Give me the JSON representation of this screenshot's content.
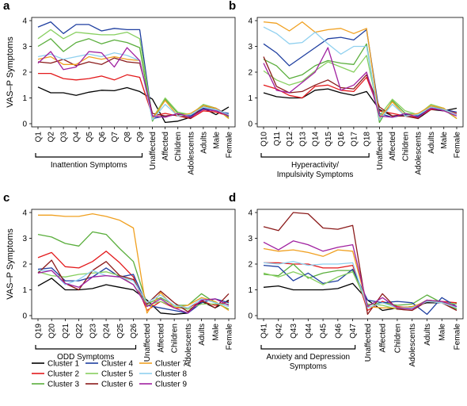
{
  "figure": {
    "legend": [
      {
        "name": "Cluster 1",
        "color": "#000000"
      },
      {
        "name": "Cluster 2",
        "color": "#e31a1c"
      },
      {
        "name": "Cluster 3",
        "color": "#5aae3c"
      },
      {
        "name": "Cluster 4",
        "color": "#1f3fa0"
      },
      {
        "name": "Cluster 5",
        "color": "#87cf5f"
      },
      {
        "name": "Cluster 6",
        "color": "#8b1a1a"
      },
      {
        "name": "Cluster 7",
        "color": "#f0a020"
      },
      {
        "name": "Cluster 8",
        "color": "#8fd0ef"
      },
      {
        "name": "Cluster 9",
        "color": "#a020a0"
      }
    ]
  },
  "chart_data": [
    {
      "type": "line",
      "panel": "a",
      "ylabel": "VAS–P Symptoms",
      "ylim": [
        0,
        4
      ],
      "yticks": [
        0,
        1,
        2,
        3,
        4
      ],
      "categories": [
        "Q1",
        "Q2",
        "Q3",
        "Q4",
        "Q5",
        "Q6",
        "Q7",
        "Q8",
        "Q9",
        "Unaffected",
        "Affected",
        "Children",
        "Adolescents",
        "Adults",
        "Male",
        "Female"
      ],
      "group_label": [
        "Inattention Symptoms"
      ],
      "series": [
        {
          "name": "Cluster 1",
          "values": [
            1.42,
            1.2,
            1.2,
            1.1,
            1.22,
            1.3,
            1.28,
            1.4,
            1.25,
            0.95,
            0.05,
            0.1,
            0.25,
            0.6,
            0.35,
            0.65
          ]
        },
        {
          "name": "Cluster 2",
          "values": [
            1.95,
            1.95,
            1.75,
            1.7,
            1.75,
            1.85,
            1.7,
            1.9,
            1.8,
            0.3,
            0.4,
            0.3,
            0.2,
            0.5,
            0.45,
            0.3
          ]
        },
        {
          "name": "Cluster 3",
          "values": [
            3.0,
            3.3,
            2.8,
            3.15,
            3.3,
            3.1,
            3.25,
            3.15,
            2.95,
            0.1,
            0.95,
            0.4,
            0.35,
            0.7,
            0.55,
            0.25
          ]
        },
        {
          "name": "Cluster 4",
          "values": [
            3.75,
            3.95,
            3.5,
            3.85,
            3.85,
            3.6,
            3.7,
            3.65,
            3.65,
            0.2,
            0.3,
            0.35,
            0.3,
            0.6,
            0.5,
            0.4
          ]
        },
        {
          "name": "Cluster 5",
          "values": [
            3.3,
            3.65,
            3.3,
            3.55,
            3.5,
            3.45,
            3.45,
            3.55,
            3.3,
            0.2,
            1.0,
            0.45,
            0.35,
            0.75,
            0.6,
            0.2
          ]
        },
        {
          "name": "Cluster 6",
          "values": [
            2.4,
            2.35,
            2.5,
            2.25,
            2.4,
            2.3,
            2.55,
            2.4,
            2.35,
            0.4,
            0.3,
            0.35,
            0.2,
            0.7,
            0.6,
            0.3
          ]
        },
        {
          "name": "Cluster 7",
          "values": [
            2.5,
            2.6,
            2.3,
            2.3,
            2.6,
            2.5,
            2.6,
            2.5,
            2.45,
            0.2,
            0.9,
            0.3,
            0.4,
            0.7,
            0.6,
            0.2
          ]
        },
        {
          "name": "Cluster 8",
          "values": [
            2.6,
            2.7,
            2.5,
            2.6,
            2.7,
            2.6,
            2.75,
            2.65,
            2.45,
            0.15,
            0.75,
            0.3,
            0.35,
            0.65,
            0.55,
            0.35
          ]
        },
        {
          "name": "Cluster 9",
          "values": [
            2.35,
            2.8,
            2.1,
            2.2,
            2.8,
            2.75,
            2.2,
            2.95,
            2.45,
            0.3,
            0.25,
            0.4,
            0.25,
            0.55,
            0.5,
            0.3
          ]
        }
      ]
    },
    {
      "type": "line",
      "panel": "b",
      "ylabel": "",
      "ylim": [
        0,
        4
      ],
      "yticks": [
        0,
        1,
        2,
        3,
        4
      ],
      "categories": [
        "Q10",
        "Q11",
        "Q12",
        "Q13",
        "Q14",
        "Q15",
        "Q16",
        "Q17",
        "Q18",
        "Unaffected",
        "Affected",
        "Children",
        "Adolescents",
        "Adults",
        "Male",
        "Female"
      ],
      "group_label": [
        "Hyperactivity/",
        "Impulsivity Symptoms"
      ],
      "series": [
        {
          "name": "Cluster 1",
          "values": [
            1.2,
            1.05,
            1.0,
            1.0,
            1.3,
            1.35,
            1.2,
            1.1,
            1.25,
            0.55,
            0.3,
            0.35,
            0.2,
            0.55,
            0.5,
            0.6
          ]
        },
        {
          "name": "Cluster 2",
          "values": [
            1.5,
            1.35,
            1.1,
            1.0,
            1.45,
            1.5,
            1.3,
            1.25,
            1.8,
            0.5,
            0.4,
            0.3,
            0.25,
            0.55,
            0.55,
            0.4
          ]
        },
        {
          "name": "Cluster 3",
          "values": [
            2.5,
            2.25,
            1.75,
            1.9,
            2.25,
            2.45,
            2.35,
            2.3,
            3.1,
            0.05,
            0.9,
            0.4,
            0.35,
            0.7,
            0.55,
            0.2
          ]
        },
        {
          "name": "Cluster 4",
          "values": [
            3.1,
            2.75,
            2.25,
            2.6,
            2.95,
            3.3,
            3.35,
            3.25,
            3.65,
            0.4,
            0.25,
            0.35,
            0.3,
            0.6,
            0.55,
            0.45
          ]
        },
        {
          "name": "Cluster 5",
          "values": [
            2.05,
            1.7,
            1.5,
            1.65,
            2.05,
            2.4,
            2.2,
            2.0,
            2.65,
            0.3,
            0.95,
            0.5,
            0.35,
            0.75,
            0.6,
            0.2
          ]
        },
        {
          "name": "Cluster 6",
          "values": [
            2.6,
            1.45,
            1.2,
            1.25,
            1.5,
            1.7,
            1.4,
            1.35,
            1.9,
            0.65,
            0.3,
            0.3,
            0.2,
            0.65,
            0.55,
            0.35
          ]
        },
        {
          "name": "Cluster 7",
          "values": [
            3.95,
            3.9,
            3.6,
            3.95,
            3.55,
            3.65,
            3.7,
            3.5,
            3.7,
            0.2,
            0.85,
            0.3,
            0.4,
            0.7,
            0.6,
            0.2
          ]
        },
        {
          "name": "Cluster 8",
          "values": [
            3.75,
            3.5,
            3.1,
            3.15,
            3.55,
            3.1,
            2.7,
            3.0,
            3.0,
            0.15,
            0.75,
            0.3,
            0.35,
            0.65,
            0.55,
            0.35
          ]
        },
        {
          "name": "Cluster 9",
          "values": [
            2.35,
            1.3,
            1.2,
            1.6,
            2.0,
            2.95,
            1.3,
            1.5,
            2.0,
            0.3,
            0.25,
            0.4,
            0.25,
            0.6,
            0.5,
            0.3
          ]
        }
      ]
    },
    {
      "type": "line",
      "panel": "c",
      "ylabel": "VAS–P Symptoms",
      "ylim": [
        0,
        4
      ],
      "yticks": [
        0,
        1,
        2,
        3,
        4
      ],
      "categories": [
        "Q19",
        "Q20",
        "Q21",
        "Q22",
        "Q23",
        "Q24",
        "Q25",
        "Q26",
        "Unaffected",
        "Affected",
        "Children",
        "Adolescents",
        "Adults",
        "Male",
        "Female"
      ],
      "group_label": [
        "ODD Symptoms"
      ],
      "series": [
        {
          "name": "Cluster 1",
          "values": [
            1.15,
            1.45,
            1.0,
            1.0,
            1.05,
            1.2,
            1.1,
            1.0,
            0.6,
            0.1,
            0.05,
            0.1,
            0.55,
            0.3,
            0.6
          ]
        },
        {
          "name": "Cluster 2",
          "values": [
            2.25,
            2.45,
            1.9,
            1.85,
            2.1,
            2.5,
            2.05,
            1.5,
            0.2,
            0.55,
            0.3,
            0.3,
            0.55,
            0.4,
            0.55
          ]
        },
        {
          "name": "Cluster 3",
          "values": [
            3.15,
            3.05,
            2.8,
            2.7,
            3.25,
            3.15,
            2.6,
            2.1,
            0.45,
            0.7,
            0.4,
            0.4,
            0.85,
            0.5,
            0.25
          ]
        },
        {
          "name": "Cluster 4",
          "values": [
            1.8,
            1.85,
            1.35,
            1.35,
            1.5,
            1.85,
            1.5,
            1.6,
            0.4,
            0.3,
            0.2,
            0.1,
            0.5,
            0.65,
            0.5
          ]
        },
        {
          "name": "Cluster 5",
          "values": [
            1.7,
            1.55,
            1.5,
            1.6,
            1.65,
            1.7,
            1.55,
            1.2,
            0.4,
            0.55,
            0.35,
            0.25,
            0.45,
            0.45,
            0.45
          ]
        },
        {
          "name": "Cluster 6",
          "values": [
            1.65,
            2.15,
            1.25,
            1.0,
            1.75,
            2.1,
            1.55,
            1.4,
            0.45,
            0.95,
            0.5,
            0.15,
            0.6,
            0.3,
            0.85
          ]
        },
        {
          "name": "Cluster 7",
          "values": [
            3.9,
            3.9,
            3.85,
            3.85,
            3.95,
            3.85,
            3.7,
            3.4,
            0.1,
            0.9,
            0.3,
            0.4,
            0.7,
            0.55,
            0.2
          ]
        },
        {
          "name": "Cluster 8",
          "values": [
            1.75,
            1.75,
            1.2,
            1.4,
            1.75,
            1.55,
            1.5,
            1.35,
            0.5,
            0.8,
            0.4,
            0.3,
            0.65,
            0.5,
            0.35
          ]
        },
        {
          "name": "Cluster 9",
          "values": [
            1.65,
            1.75,
            1.25,
            1.1,
            1.5,
            1.55,
            1.5,
            1.2,
            0.35,
            0.65,
            0.3,
            0.1,
            0.6,
            0.65,
            0.4
          ]
        }
      ]
    },
    {
      "type": "line",
      "panel": "d",
      "ylabel": "",
      "ylim": [
        0,
        4
      ],
      "yticks": [
        0,
        1,
        2,
        3,
        4
      ],
      "categories": [
        "Q41",
        "Q42",
        "Q43",
        "Q44",
        "Q45",
        "Q46",
        "Q47",
        "Unaffected",
        "Affected",
        "Children",
        "Adolescents",
        "Adults",
        "Male",
        "Female"
      ],
      "group_label": [
        "Anxiety and Depression",
        "Symptoms"
      ],
      "series": [
        {
          "name": "Cluster 1",
          "values": [
            1.1,
            1.15,
            1.0,
            1.0,
            1.0,
            1.05,
            1.25,
            0.6,
            0.2,
            0.3,
            0.35,
            0.5,
            0.5,
            0.45
          ]
        },
        {
          "name": "Cluster 2",
          "values": [
            2.05,
            2.05,
            2.0,
            2.0,
            1.85,
            1.85,
            1.95,
            0.2,
            0.55,
            0.35,
            0.3,
            0.6,
            0.55,
            0.5
          ]
        },
        {
          "name": "Cluster 3",
          "values": [
            1.6,
            1.55,
            2.0,
            1.45,
            1.65,
            1.75,
            1.75,
            0.4,
            0.5,
            0.4,
            0.45,
            0.8,
            0.5,
            0.25
          ]
        },
        {
          "name": "Cluster 4",
          "values": [
            1.95,
            1.9,
            1.35,
            1.65,
            1.25,
            1.35,
            1.8,
            0.6,
            0.5,
            0.55,
            0.5,
            0.05,
            0.7,
            0.35
          ]
        },
        {
          "name": "Cluster 5",
          "values": [
            1.65,
            1.5,
            1.7,
            1.5,
            1.2,
            1.5,
            1.7,
            0.45,
            0.4,
            0.25,
            0.3,
            0.6,
            0.5,
            0.45
          ]
        },
        {
          "name": "Cluster 6",
          "values": [
            3.45,
            3.3,
            4.0,
            3.95,
            3.4,
            3.35,
            3.5,
            0.05,
            0.85,
            0.25,
            0.2,
            0.55,
            0.5,
            0.2
          ]
        },
        {
          "name": "Cluster 7",
          "values": [
            2.6,
            2.5,
            2.55,
            2.45,
            2.3,
            2.55,
            2.5,
            0.35,
            0.3,
            0.3,
            0.35,
            0.55,
            0.5,
            0.3
          ]
        },
        {
          "name": "Cluster 8",
          "values": [
            2.05,
            2.0,
            2.1,
            1.95,
            2.0,
            2.0,
            2.05,
            0.3,
            0.5,
            0.3,
            0.3,
            0.55,
            0.5,
            0.3
          ]
        },
        {
          "name": "Cluster 9",
          "values": [
            2.85,
            2.55,
            2.9,
            2.75,
            2.5,
            2.65,
            2.75,
            0.35,
            0.7,
            0.3,
            0.25,
            0.6,
            0.55,
            0.35
          ]
        }
      ]
    }
  ]
}
